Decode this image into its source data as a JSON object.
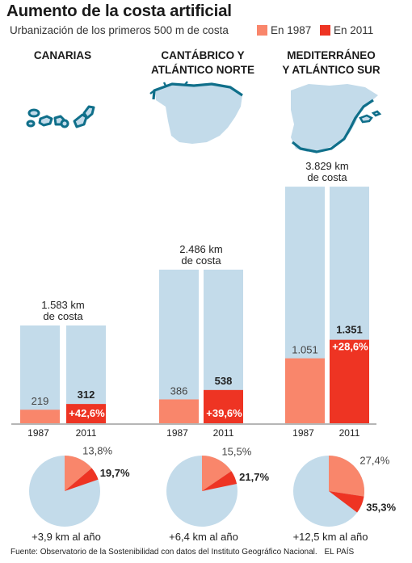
{
  "title": "Aumento de la costa artificial",
  "subtitle": "Urbanización de los primeros 500 m de costa",
  "legend": [
    {
      "label": "En 1987",
      "color": "#f9866b"
    },
    {
      "label": "En 2011",
      "color": "#ee3423"
    }
  ],
  "colors": {
    "total": "#c3dbea",
    "y1987": "#f9866b",
    "y2011": "#ee3423",
    "map_fill": "#c3dbea",
    "map_coast": "#0f6f8a"
  },
  "source": "Fuente: Observatorio de la Sostenibilidad con datos del Instituto Geográfico Nacional.",
  "brand": "EL PAÍS",
  "chart_data": [
    {
      "type": "bar",
      "region": "CANARIAS",
      "total_label": "1.583 km\nde costa",
      "total_km": 1583,
      "categories": [
        "1987",
        "2011"
      ],
      "values": [
        219,
        312
      ],
      "value_labels": [
        "219",
        "312"
      ],
      "change_label": "+42,6%"
    },
    {
      "type": "bar",
      "region": "CANTÁBRICO Y\nATLÁNTICO NORTE",
      "total_label": "2.486 km\nde costa",
      "total_km": 2486,
      "categories": [
        "1987",
        "2011"
      ],
      "values": [
        386,
        538
      ],
      "value_labels": [
        "386",
        "538"
      ],
      "change_label": "+39,6%"
    },
    {
      "type": "bar",
      "region": "MEDITERRÁNEO\nY ATLÁNTICO SUR",
      "total_label": "3.829 km\nde costa",
      "total_km": 3829,
      "categories": [
        "1987",
        "2011"
      ],
      "values": [
        1051,
        1351
      ],
      "value_labels": [
        "1.051",
        "1.351"
      ],
      "change_label": "+28,6%"
    },
    {
      "type": "pie",
      "region": "CANARIAS",
      "slices": [
        13.8,
        19.7
      ],
      "slice_labels": [
        "13,8%",
        "19,7%"
      ],
      "caption": "+3,9 km al año"
    },
    {
      "type": "pie",
      "region": "CANTÁBRICO Y ATLÁNTICO NORTE",
      "slices": [
        15.5,
        21.7
      ],
      "slice_labels": [
        "15,5%",
        "21,7%"
      ],
      "caption": "+6,4 km al año"
    },
    {
      "type": "pie",
      "region": "MEDITERRÁNEO Y ATLÁNTICO SUR",
      "slices": [
        27.4,
        35.3
      ],
      "slice_labels": [
        "27,4%",
        "35,3%"
      ],
      "caption": "+12,5 km al año"
    }
  ]
}
